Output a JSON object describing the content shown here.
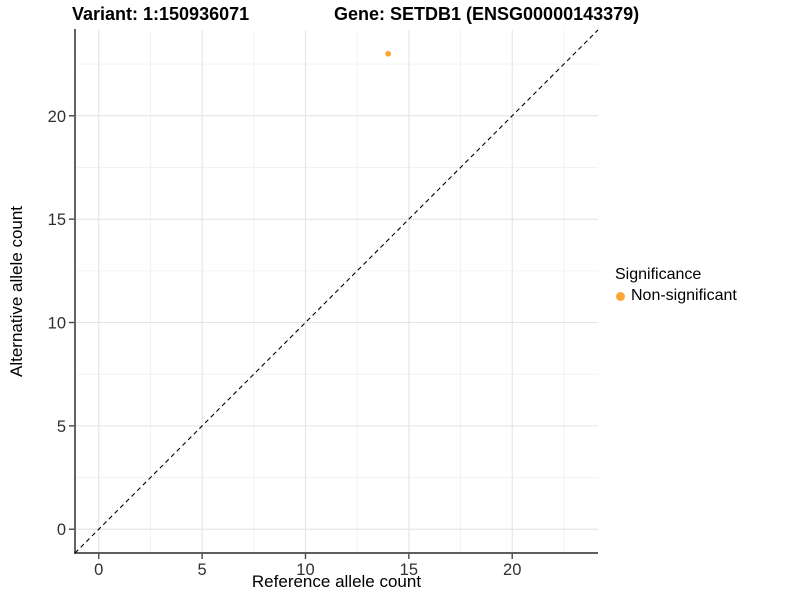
{
  "title": {
    "variant": "Variant: 1:150936071",
    "gene": "Gene: SETDB1 (ENSG00000143379)"
  },
  "legend": {
    "title": "Significance",
    "items": [
      {
        "label": "Non-significant",
        "color": "#FCA636"
      }
    ]
  },
  "colors": {
    "background": "#FFFFFF",
    "grid_major": "#E4E4E4",
    "grid_minor": "#F1F1F1",
    "axis_line": "#474747",
    "tick_label": "#303030",
    "axis_title": "#000000",
    "reference_line": "#000000"
  },
  "chart_data": {
    "type": "scatter",
    "title": "Variant: 1:150936071    Gene: SETDB1 (ENSG00000143379)",
    "xlabel": "Reference allele count",
    "ylabel": "Alternative allele count",
    "xlim": [
      -1.15,
      24.15
    ],
    "ylim": [
      -1.15,
      24.15
    ],
    "xticks": [
      0,
      5,
      10,
      15,
      20
    ],
    "yticks": [
      0,
      5,
      10,
      15,
      20
    ],
    "minor_xticks": [
      2.5,
      7.5,
      12.5,
      17.5,
      22.5
    ],
    "minor_yticks": [
      2.5,
      7.5,
      12.5,
      17.5,
      22.5
    ],
    "grid": "on",
    "legend_position": "right",
    "series": [
      {
        "name": "Non-significant",
        "color": "#FCA636",
        "points": [
          {
            "x": 14,
            "y": 23
          }
        ]
      }
    ],
    "reference_line": {
      "type": "identity y=x",
      "style": "dashed",
      "color": "#000000",
      "from": [
        -1.15,
        -1.15
      ],
      "to": [
        24.15,
        24.15
      ]
    }
  }
}
